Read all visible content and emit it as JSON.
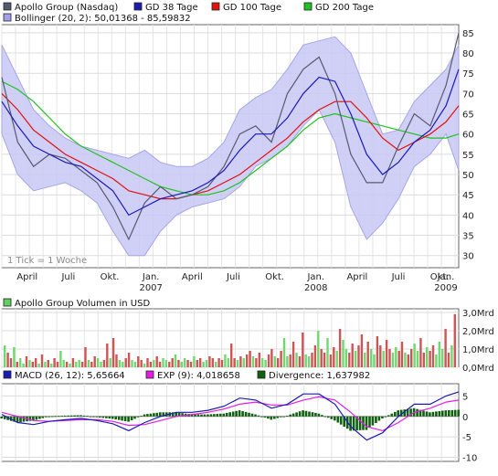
{
  "chart_data": [
    {
      "type": "line",
      "legend": [
        {
          "label": "Apollo Group (Nasdaq)",
          "color": "#555a6e"
        },
        {
          "label": "GD 38 Tage",
          "color": "#1a1ab4"
        },
        {
          "label": "GD 100 Tage",
          "color": "#e01010"
        },
        {
          "label": "GD 200 Tage",
          "color": "#20c020"
        },
        {
          "label": "Bollinger (20, 2): 50,01368 - 85,59832",
          "color": "#a0a0ee"
        }
      ],
      "note": "1 Tick = 1 Woche",
      "yticks": [
        30,
        35,
        40,
        45,
        50,
        55,
        60,
        65,
        70,
        75,
        80,
        85
      ],
      "ylim": [
        27,
        87
      ],
      "xlim": [
        0,
        144
      ],
      "xticks": [
        {
          "pos": 8,
          "label": "April",
          "year": ""
        },
        {
          "pos": 21,
          "label": "Juli",
          "year": ""
        },
        {
          "pos": 34,
          "label": "Okt.",
          "year": ""
        },
        {
          "pos": 47,
          "label": "Jan.",
          "year": "2007"
        },
        {
          "pos": 60,
          "label": "April",
          "year": ""
        },
        {
          "pos": 73,
          "label": "Juli",
          "year": ""
        },
        {
          "pos": 86,
          "label": "Okt.",
          "year": ""
        },
        {
          "pos": 99,
          "label": "Jan.",
          "year": "2008"
        },
        {
          "pos": 112,
          "label": "April",
          "year": ""
        },
        {
          "pos": 125,
          "label": "Juli",
          "year": ""
        },
        {
          "pos": 138,
          "label": "Okt.",
          "year": ""
        },
        {
          "pos": 151,
          "label": "Jan.",
          "year": "2009"
        }
      ],
      "series": [
        {
          "name": "Apollo Group (Nasdaq)",
          "x": [
            0,
            5,
            10,
            15,
            20,
            25,
            30,
            35,
            40,
            45,
            50,
            55,
            60,
            65,
            70,
            75,
            80,
            85,
            90,
            95,
            100,
            105,
            110,
            115,
            120,
            125,
            130,
            135,
            140,
            144
          ],
          "values": [
            74,
            58,
            52,
            55,
            54,
            51,
            48,
            42,
            34,
            43,
            47,
            44,
            45,
            47,
            52,
            60,
            62,
            58,
            70,
            76,
            79,
            70,
            55,
            48,
            48,
            57,
            65,
            62,
            72,
            85
          ]
        },
        {
          "name": "GD 38 Tage",
          "x": [
            0,
            5,
            10,
            15,
            20,
            25,
            30,
            35,
            40,
            45,
            50,
            55,
            60,
            65,
            70,
            75,
            80,
            85,
            90,
            95,
            100,
            105,
            110,
            115,
            120,
            125,
            130,
            135,
            140,
            144
          ],
          "values": [
            68,
            62,
            57,
            55,
            53,
            52,
            49,
            46,
            40,
            42,
            44,
            45,
            46,
            48,
            51,
            56,
            60,
            60,
            64,
            70,
            74,
            73,
            65,
            55,
            50,
            53,
            58,
            61,
            67,
            76
          ]
        },
        {
          "name": "GD 100 Tage",
          "x": [
            0,
            5,
            10,
            15,
            20,
            25,
            30,
            35,
            40,
            45,
            50,
            55,
            60,
            65,
            70,
            75,
            80,
            85,
            90,
            95,
            100,
            105,
            110,
            115,
            120,
            125,
            130,
            135,
            140,
            144
          ],
          "values": [
            70,
            66,
            61,
            58,
            55,
            53,
            51,
            49,
            46,
            45,
            44,
            44,
            45,
            46,
            48,
            50,
            53,
            56,
            59,
            63,
            66,
            68,
            68,
            64,
            59,
            56,
            58,
            60,
            63,
            67
          ]
        },
        {
          "name": "GD 200 Tage",
          "x": [
            0,
            5,
            10,
            15,
            20,
            25,
            30,
            35,
            40,
            45,
            50,
            55,
            60,
            65,
            70,
            75,
            80,
            85,
            90,
            95,
            100,
            105,
            110,
            115,
            120,
            125,
            130,
            135,
            140,
            144
          ],
          "values": [
            73,
            71,
            68,
            64,
            60,
            57,
            55,
            53,
            51,
            49,
            47,
            46,
            45,
            45,
            46,
            48,
            51,
            54,
            57,
            61,
            64,
            65,
            64,
            63,
            62,
            61,
            60,
            59,
            59,
            60
          ]
        },
        {
          "name": "Bollinger oben",
          "x": [
            0,
            5,
            10,
            15,
            20,
            25,
            30,
            35,
            40,
            45,
            50,
            55,
            60,
            65,
            70,
            75,
            80,
            85,
            90,
            95,
            100,
            105,
            110,
            115,
            120,
            125,
            130,
            135,
            140,
            144
          ],
          "values": [
            82,
            74,
            66,
            62,
            59,
            57,
            56,
            55,
            54,
            56,
            53,
            52,
            52,
            54,
            58,
            66,
            69,
            71,
            76,
            82,
            83,
            84,
            80,
            70,
            60,
            61,
            68,
            72,
            76,
            82
          ]
        },
        {
          "name": "Bollinger unten",
          "x": [
            0,
            5,
            10,
            15,
            20,
            25,
            30,
            35,
            40,
            45,
            50,
            55,
            60,
            65,
            70,
            75,
            80,
            85,
            90,
            95,
            100,
            105,
            110,
            115,
            120,
            125,
            130,
            135,
            140,
            144
          ],
          "values": [
            60,
            50,
            46,
            47,
            48,
            46,
            43,
            36,
            30,
            30,
            36,
            40,
            42,
            43,
            44,
            47,
            52,
            54,
            57,
            62,
            66,
            58,
            42,
            34,
            38,
            44,
            52,
            55,
            60,
            51
          ]
        }
      ]
    },
    {
      "type": "bar",
      "legend": [
        {
          "label": "Apollo Group Volumen in USD",
          "color": "#60d060"
        }
      ],
      "yticks": [
        {
          "value": 0,
          "label": "0,0Mrd"
        },
        {
          "value": 1,
          "label": "1,0Mrd"
        },
        {
          "value": 2,
          "label": "2,0Mrd"
        },
        {
          "value": 3,
          "label": "3,0Mrd"
        }
      ],
      "ylim": [
        0,
        3.2
      ],
      "xlim": [
        0,
        144
      ],
      "up_color": "#70d870",
      "down_color": "#cc5555",
      "values": [
        1.2,
        0.8,
        0.5,
        1.1,
        0.3,
        0.5,
        0.2,
        0.6,
        0.4,
        0.3,
        0.5,
        0.2,
        0.7,
        0.3,
        0.4,
        0.2,
        0.5,
        0.3,
        0.9,
        0.4,
        0.3,
        0.2,
        0.5,
        0.3,
        0.4,
        0.3,
        1.1,
        0.4,
        0.3,
        0.6,
        0.5,
        0.3,
        0.4,
        1.3,
        0.5,
        1.6,
        0.7,
        0.4,
        0.3,
        0.5,
        0.8,
        0.4,
        0.3,
        0.6,
        0.4,
        0.2,
        0.5,
        0.3,
        0.4,
        0.6,
        0.3,
        0.5,
        0.4,
        0.3,
        0.5,
        0.7,
        0.4,
        0.3,
        0.5,
        0.4,
        0.3,
        0.6,
        0.4,
        0.5,
        0.3,
        0.4,
        0.6,
        0.5,
        0.3,
        0.5,
        0.4,
        0.7,
        0.5,
        1.3,
        0.5,
        0.4,
        0.6,
        0.5,
        0.7,
        0.9,
        0.6,
        0.5,
        0.8,
        0.5,
        0.4,
        0.7,
        1.0,
        0.6,
        0.5,
        0.9,
        1.6,
        0.6,
        0.7,
        1.4,
        0.8,
        0.6,
        1.9,
        0.7,
        0.6,
        0.8,
        1.2,
        2.0,
        1.0,
        0.8,
        1.6,
        0.7,
        1.1,
        0.9,
        2.1,
        1.5,
        1.0,
        0.8,
        1.3,
        0.9,
        1.2,
        1.8,
        0.8,
        1.4,
        1.0,
        0.7,
        1.7,
        1.2,
        0.9,
        1.5,
        1.0,
        0.8,
        1.1,
        0.9,
        1.4,
        0.8,
        0.7,
        1.0,
        1.3,
        0.9,
        1.6,
        0.8,
        1.1,
        0.9,
        1.2,
        0.7,
        1.4,
        1.0,
        2.1,
        0.8,
        1.2,
        2.9
      ],
      "directions": "udduduududdudududduududuuddudduuddudduudduudduddudduudduduuddudduuddudduuddududdudduuddudduuddudduudduddudduduuddudduduuddudduuddudduuddudduu"
    },
    {
      "type": "line",
      "legend": [
        {
          "label": "MACD (26, 12): 5,65664",
          "color": "#1a1ab4"
        },
        {
          "label": "EXP (9): 4,018658",
          "color": "#e020e0"
        },
        {
          "label": "Divergence: 1,637982",
          "color": "#106010"
        }
      ],
      "yticks": [
        -10,
        -5,
        0,
        5
      ],
      "ylim": [
        -11,
        8
      ],
      "xlim": [
        0,
        144
      ],
      "series": [
        {
          "name": "MACD",
          "x": [
            0,
            5,
            10,
            15,
            20,
            25,
            30,
            35,
            40,
            45,
            50,
            55,
            60,
            65,
            70,
            75,
            80,
            85,
            90,
            95,
            100,
            105,
            110,
            115,
            120,
            125,
            130,
            135,
            140,
            144
          ],
          "values": [
            0.5,
            -1.5,
            -2,
            -1.2,
            -0.8,
            -0.5,
            -1,
            -1.8,
            -3.5,
            -1.5,
            0,
            1,
            1,
            1.5,
            2.5,
            4.5,
            4,
            2,
            3,
            5.5,
            5.5,
            3,
            -2.5,
            -5.8,
            -4,
            0,
            3,
            3,
            5,
            6
          ]
        },
        {
          "name": "EXP",
          "x": [
            0,
            5,
            10,
            15,
            20,
            25,
            30,
            35,
            40,
            45,
            50,
            55,
            60,
            65,
            70,
            75,
            80,
            85,
            90,
            95,
            100,
            105,
            110,
            115,
            120,
            125,
            130,
            135,
            140,
            144
          ],
          "values": [
            1,
            0,
            -1,
            -1.2,
            -1,
            -0.8,
            -0.8,
            -1.2,
            -2.2,
            -2,
            -1,
            0,
            0.5,
            1,
            1.8,
            3,
            3.5,
            2.8,
            2.8,
            4,
            4.8,
            4,
            1,
            -2.5,
            -3.5,
            -1.5,
            1,
            2,
            3.5,
            4
          ]
        },
        {
          "name": "Divergence",
          "type": "bar",
          "x": [
            0,
            5,
            10,
            15,
            20,
            25,
            30,
            35,
            40,
            45,
            50,
            55,
            60,
            65,
            70,
            75,
            80,
            85,
            90,
            95,
            100,
            105,
            110,
            115,
            120,
            125,
            130,
            135,
            140,
            144
          ],
          "values": [
            -0.5,
            -1.5,
            -1,
            0,
            0.2,
            0.3,
            -0.2,
            -0.6,
            -1.3,
            0.5,
            1,
            1,
            0.5,
            0.5,
            0.7,
            1.5,
            0.5,
            -0.8,
            0.2,
            1.5,
            0.7,
            -1,
            -3.5,
            -3.3,
            -0.5,
            1.5,
            2,
            1,
            1.5,
            1.6
          ]
        }
      ]
    }
  ]
}
